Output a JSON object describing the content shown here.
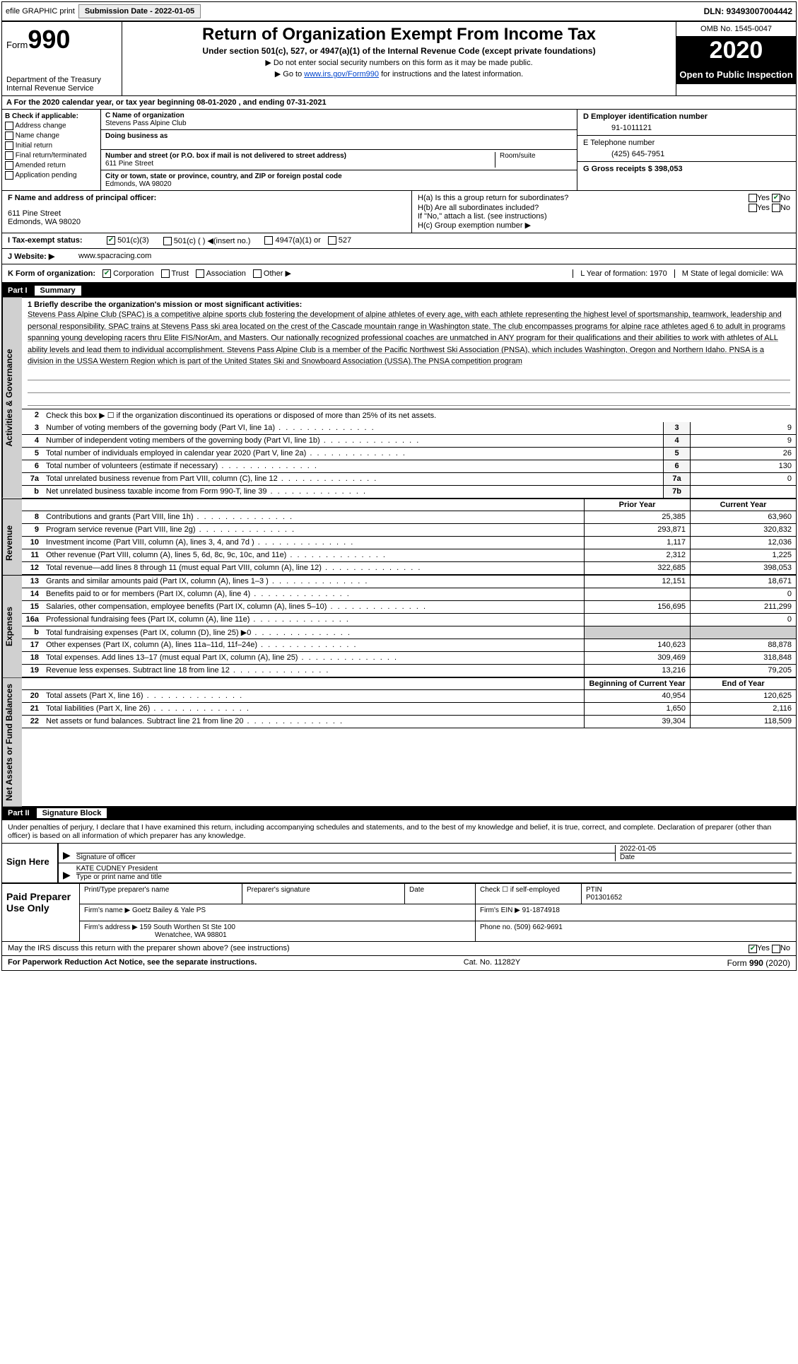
{
  "topbar": {
    "efile_label": "efile GRAPHIC print",
    "submission_label": "Submission Date - 2022-01-05",
    "dln_label": "DLN: 93493007004442"
  },
  "header": {
    "form_label": "Form",
    "form_number": "990",
    "dept1": "Department of the Treasury",
    "dept2": "Internal Revenue Service",
    "title": "Return of Organization Exempt From Income Tax",
    "subtitle": "Under section 501(c), 527, or 4947(a)(1) of the Internal Revenue Code (except private foundations)",
    "note1": "▶ Do not enter social security numbers on this form as it may be made public.",
    "note2_pre": "▶ Go to ",
    "note2_link": "www.irs.gov/Form990",
    "note2_post": " for instructions and the latest information.",
    "omb": "OMB No. 1545-0047",
    "year": "2020",
    "open_public": "Open to Public Inspection"
  },
  "row_a": "A For the 2020 calendar year, or tax year beginning 08-01-2020  , and ending 07-31-2021",
  "section_b": {
    "title": "B Check if applicable:",
    "opts": [
      "Address change",
      "Name change",
      "Initial return",
      "Final return/terminated",
      "Amended return",
      "Application pending"
    ]
  },
  "section_c": {
    "c_label": "C Name of organization",
    "c_name": "Stevens Pass Alpine Club",
    "dba_label": "Doing business as",
    "addr_label": "Number and street (or P.O. box if mail is not delivered to street address)",
    "addr_val": "611 Pine Street",
    "room_label": "Room/suite",
    "city_label": "City or town, state or province, country, and ZIP or foreign postal code",
    "city_val": "Edmonds, WA  98020"
  },
  "section_d": {
    "d_label": "D Employer identification number",
    "d_val": "91-1011121",
    "e_label": "E Telephone number",
    "e_val": "(425) 645-7951",
    "g_label": "G Gross receipts $ 398,053"
  },
  "section_f": {
    "label": "F  Name and address of principal officer:",
    "line1": "611 Pine Street",
    "line2": "Edmonds, WA  98020"
  },
  "section_h": {
    "ha_label": "H(a)  Is this a group return for subordinates?",
    "hb_label": "H(b)  Are all subordinates included?",
    "hb_note": "If \"No,\" attach a list. (see instructions)",
    "hc_label": "H(c)  Group exemption number ▶",
    "yes": "Yes",
    "no": "No"
  },
  "line_i": {
    "label": "I   Tax-exempt status:",
    "o1": "501(c)(3)",
    "o2": "501(c) (  ) ◀(insert no.)",
    "o3": "4947(a)(1) or",
    "o4": "527"
  },
  "line_j": {
    "label": "J   Website: ▶",
    "val": "www.spacracing.com"
  },
  "line_k": {
    "label": "K Form of organization:",
    "o1": "Corporation",
    "o2": "Trust",
    "o3": "Association",
    "o4": "Other ▶",
    "l_label": "L Year of formation: 1970",
    "m_label": "M State of legal domicile: WA"
  },
  "part1": {
    "part_num": "Part I",
    "part_title": "Summary",
    "line1_label": "1  Briefly describe the organization's mission or most significant activities:",
    "mission": "Stevens Pass Alpine Club (SPAC) is a competitive alpine sports club fostering the development of alpine athletes of every age, with each athlete representing the highest level of sportsmanship, teamwork, leadership and personal responsibility. SPAC trains at Stevens Pass ski area located on the crest of the Cascade mountain range in Washington state. The club encompasses programs for alpine race athletes aged 6 to adult in programs spanning young developing racers thru Elite FIS/NorAm, and Masters. Our nationally recognized professional coaches are unmatched in ANY program for their qualifications and their abilities to work with athletes of ALL ability levels and lead them to individual accomplishment. Stevens Pass Alpine Club is a member of the Pacific Northwest Ski Association (PNSA), which includes Washington, Oregon and Northern Idaho. PNSA is a division in the USSA Western Region which is part of the United States Ski and Snowboard Association (USSA).The PNSA competition program",
    "line2": "Check this box ▶ ☐ if the organization discontinued its operations or disposed of more than 25% of its net assets.",
    "rows_single": [
      {
        "n": "3",
        "d": "Number of voting members of the governing body (Part VI, line 1a)",
        "b": "3",
        "v": "9"
      },
      {
        "n": "4",
        "d": "Number of independent voting members of the governing body (Part VI, line 1b)",
        "b": "4",
        "v": "9"
      },
      {
        "n": "5",
        "d": "Total number of individuals employed in calendar year 2020 (Part V, line 2a)",
        "b": "5",
        "v": "26"
      },
      {
        "n": "6",
        "d": "Total number of volunteers (estimate if necessary)",
        "b": "6",
        "v": "130"
      },
      {
        "n": "7a",
        "d": "Total unrelated business revenue from Part VIII, column (C), line 12",
        "b": "7a",
        "v": "0"
      },
      {
        "n": "b",
        "d": "Net unrelated business taxable income from Form 990-T, line 39",
        "b": "7b",
        "v": ""
      }
    ],
    "col_hdr_prior": "Prior Year",
    "col_hdr_current": "Current Year",
    "revenue_rows": [
      {
        "n": "8",
        "d": "Contributions and grants (Part VIII, line 1h)",
        "p": "25,385",
        "c": "63,960"
      },
      {
        "n": "9",
        "d": "Program service revenue (Part VIII, line 2g)",
        "p": "293,871",
        "c": "320,832"
      },
      {
        "n": "10",
        "d": "Investment income (Part VIII, column (A), lines 3, 4, and 7d )",
        "p": "1,117",
        "c": "12,036"
      },
      {
        "n": "11",
        "d": "Other revenue (Part VIII, column (A), lines 5, 6d, 8c, 9c, 10c, and 11e)",
        "p": "2,312",
        "c": "1,225"
      },
      {
        "n": "12",
        "d": "Total revenue—add lines 8 through 11 (must equal Part VIII, column (A), line 12)",
        "p": "322,685",
        "c": "398,053"
      }
    ],
    "expense_rows": [
      {
        "n": "13",
        "d": "Grants and similar amounts paid (Part IX, column (A), lines 1–3 )",
        "p": "12,151",
        "c": "18,671"
      },
      {
        "n": "14",
        "d": "Benefits paid to or for members (Part IX, column (A), line 4)",
        "p": "",
        "c": "0"
      },
      {
        "n": "15",
        "d": "Salaries, other compensation, employee benefits (Part IX, column (A), lines 5–10)",
        "p": "156,695",
        "c": "211,299"
      },
      {
        "n": "16a",
        "d": "Professional fundraising fees (Part IX, column (A), line 11e)",
        "p": "",
        "c": "0"
      },
      {
        "n": "b",
        "d": "Total fundraising expenses (Part IX, column (D), line 25) ▶0",
        "p": "GRAY",
        "c": "GRAY"
      },
      {
        "n": "17",
        "d": "Other expenses (Part IX, column (A), lines 11a–11d, 11f–24e)",
        "p": "140,623",
        "c": "88,878"
      },
      {
        "n": "18",
        "d": "Total expenses. Add lines 13–17 (must equal Part IX, column (A), line 25)",
        "p": "309,469",
        "c": "318,848"
      },
      {
        "n": "19",
        "d": "Revenue less expenses. Subtract line 18 from line 12",
        "p": "13,216",
        "c": "79,205"
      }
    ],
    "col_hdr_begin": "Beginning of Current Year",
    "col_hdr_end": "End of Year",
    "net_rows": [
      {
        "n": "20",
        "d": "Total assets (Part X, line 16)",
        "p": "40,954",
        "c": "120,625"
      },
      {
        "n": "21",
        "d": "Total liabilities (Part X, line 26)",
        "p": "1,650",
        "c": "2,116"
      },
      {
        "n": "22",
        "d": "Net assets or fund balances. Subtract line 21 from line 20",
        "p": "39,304",
        "c": "118,509"
      }
    ]
  },
  "vtabs": {
    "gov": "Activities & Governance",
    "rev": "Revenue",
    "exp": "Expenses",
    "net": "Net Assets or Fund Balances"
  },
  "part2": {
    "part_num": "Part II",
    "part_title": "Signature Block",
    "intro": "Under penalties of perjury, I declare that I have examined this return, including accompanying schedules and statements, and to the best of my knowledge and belief, it is true, correct, and complete. Declaration of preparer (other than officer) is based on all information of which preparer has any knowledge.",
    "sign_here": "Sign Here",
    "sig_officer_label": "Signature of officer",
    "sig_date_label": "Date",
    "sig_date_val": "2022-01-05",
    "officer_name": "KATE CUDNEY President",
    "officer_type_label": "Type or print name and title",
    "paid_label": "Paid Preparer Use Only",
    "prep_name_label": "Print/Type preparer's name",
    "prep_sig_label": "Preparer's signature",
    "date_label": "Date",
    "check_self": "Check ☐ if self-employed",
    "ptin_label": "PTIN",
    "ptin_val": "P01301652",
    "firm_name_label": "Firm's name    ▶",
    "firm_name": "Goetz Bailey & Yale PS",
    "firm_ein_label": "Firm's EIN ▶",
    "firm_ein": "91-1874918",
    "firm_addr_label": "Firm's address ▶",
    "firm_addr1": "159 South Worthen St Ste 100",
    "firm_addr2": "Wenatchee, WA  98801",
    "phone_label": "Phone no.",
    "phone_val": "(509) 662-9691"
  },
  "footer": {
    "discuss": "May the IRS discuss this return with the preparer shown above? (see instructions)",
    "yes": "Yes",
    "no": "No",
    "pra": "For Paperwork Reduction Act Notice, see the separate instructions.",
    "cat": "Cat. No. 11282Y",
    "form": "Form 990 (2020)"
  }
}
